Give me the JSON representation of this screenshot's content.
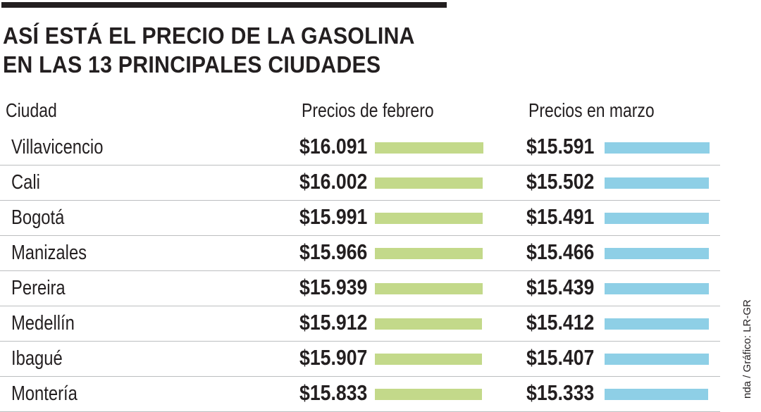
{
  "chart_data": {
    "type": "table",
    "title": "ASÍ ESTÁ EL PRECIO DE LA GASOLINA EN LAS 13 PRINCIPALES CIUDADES",
    "columns": [
      "Ciudad",
      "Precios de febrero",
      "Precios en marzo"
    ],
    "series": [
      {
        "name": "Precios de febrero",
        "color": "#c3d98a",
        "values": [
          16091,
          16002,
          15991,
          15966,
          15939,
          15912,
          15907,
          15833
        ]
      },
      {
        "name": "Precios en marzo",
        "color": "#8ecfe6",
        "values": [
          15591,
          15502,
          15491,
          15466,
          15439,
          15412,
          15407,
          15333
        ]
      }
    ],
    "rows": [
      {
        "city": "Villavicencio",
        "feb": "$16.091",
        "mar": "$15.591"
      },
      {
        "city": "Cali",
        "feb": "$16.002",
        "mar": "$15.502"
      },
      {
        "city": "Bogotá",
        "feb": "$15.991",
        "mar": "$15.491"
      },
      {
        "city": "Manizales",
        "feb": "$15.966",
        "mar": "$15.466"
      },
      {
        "city": "Pereira",
        "feb": "$15.939",
        "mar": "$15.439"
      },
      {
        "city": "Medellín",
        "feb": "$15.912",
        "mar": "$15.412"
      },
      {
        "city": "Ibagué",
        "feb": "$15.907",
        "mar": "$15.407"
      },
      {
        "city": "Montería",
        "feb": "$15.833",
        "mar": "$15.333"
      }
    ],
    "credit": "nda / Gráfico: LR-GR"
  }
}
